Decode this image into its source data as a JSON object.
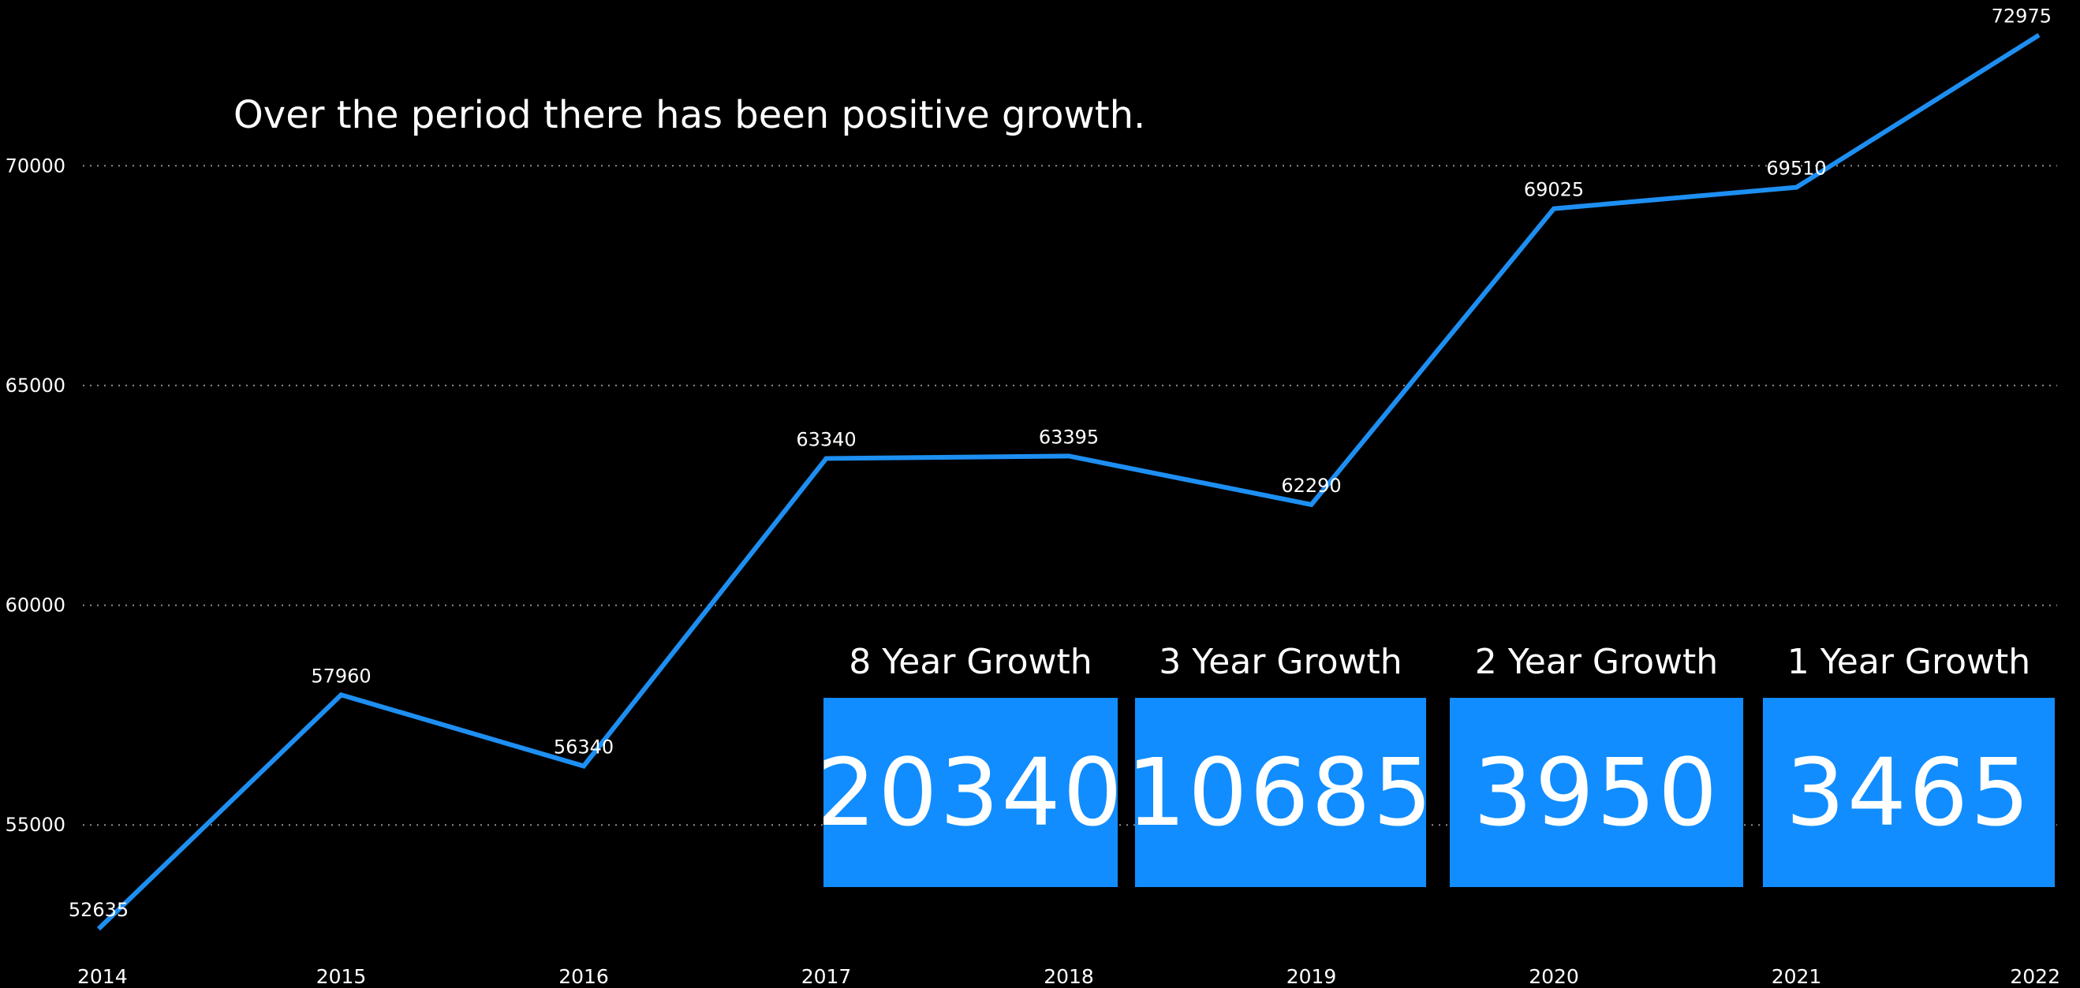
{
  "colors": {
    "background": "#000000",
    "line": "#1E8FF2",
    "card": "#118DFF",
    "text": "#FFFFFF",
    "grid": "#8C8C8C"
  },
  "annotation": "Over the period there has been positive growth.",
  "chart_data": {
    "type": "line",
    "x": [
      "2014",
      "2015",
      "2016",
      "2017",
      "2018",
      "2019",
      "2020",
      "2021",
      "2022"
    ],
    "values": [
      52635,
      57960,
      56340,
      63340,
      63395,
      62290,
      69025,
      69510,
      72975
    ],
    "data_labels": [
      "52635",
      "57960",
      "56340",
      "63340",
      "63395",
      "62290",
      "69025",
      "69510",
      "72975"
    ],
    "y_ticks": [
      55000,
      60000,
      65000,
      70000
    ],
    "y_tick_labels": [
      "55000",
      "60000",
      "65000",
      "70000"
    ],
    "ylim": [
      52000,
      73500
    ],
    "grid": "horizontal-dotted",
    "legend": "none"
  },
  "cards": [
    {
      "title": "8 Year Growth",
      "value": "20340"
    },
    {
      "title": "3 Year Growth",
      "value": "10685"
    },
    {
      "title": "2 Year Growth",
      "value": "3950"
    },
    {
      "title": "1 Year Growth",
      "value": "3465"
    }
  ]
}
